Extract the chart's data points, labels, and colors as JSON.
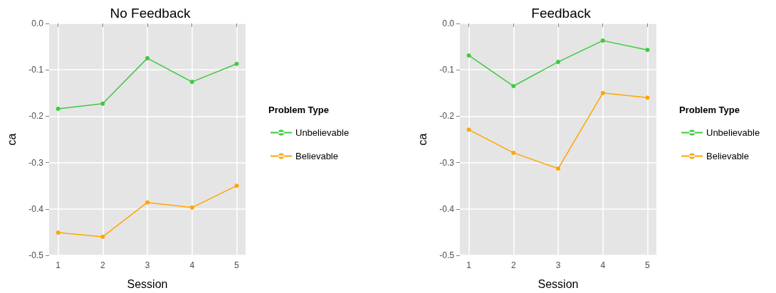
{
  "chart_data": [
    {
      "type": "line",
      "title": "No Feedback",
      "xlabel": "Session",
      "ylabel": "ca",
      "legend_title": "Problem Type",
      "legend": "right",
      "grid": true,
      "marker": "circle",
      "line_style": "solid",
      "x": [
        1,
        2,
        3,
        4,
        5
      ],
      "xlim": [
        0.8,
        5.2
      ],
      "xticks": [
        1,
        2,
        3,
        4,
        5
      ],
      "ylim": [
        -0.5,
        0
      ],
      "yticks": [
        {
          "value": -0.5,
          "label": "-0.5"
        },
        {
          "value": -0.4,
          "label": "-0.4"
        },
        {
          "value": -0.3,
          "label": "-0.3"
        },
        {
          "value": -0.2,
          "label": "-0.2"
        },
        {
          "value": -0.1,
          "label": "-0.1"
        },
        {
          "value": 0,
          "label": "0.0"
        }
      ],
      "series": [
        {
          "name": "Unbelievable",
          "color": "#3ec93e",
          "values": [
            -0.184,
            -0.173,
            -0.075,
            -0.126,
            -0.087
          ]
        },
        {
          "name": "Believable",
          "color": "#ffa500",
          "values": [
            -0.451,
            -0.46,
            -0.386,
            -0.397,
            -0.35
          ]
        }
      ]
    },
    {
      "type": "line",
      "title": "Feedback",
      "xlabel": "Session",
      "ylabel": "ca",
      "legend_title": "Problem Type",
      "legend": "right",
      "grid": true,
      "marker": "circle",
      "line_style": "solid",
      "x": [
        1,
        2,
        3,
        4,
        5
      ],
      "xlim": [
        0.8,
        5.2
      ],
      "xticks": [
        1,
        2,
        3,
        4,
        5
      ],
      "ylim": [
        -0.5,
        0
      ],
      "yticks": [
        {
          "value": -0.5,
          "label": "-0.5"
        },
        {
          "value": -0.4,
          "label": "-0.4"
        },
        {
          "value": -0.3,
          "label": "-0.3"
        },
        {
          "value": -0.2,
          "label": "-0.2"
        },
        {
          "value": -0.1,
          "label": "-0.1"
        },
        {
          "value": 0,
          "label": "0.0"
        }
      ],
      "series": [
        {
          "name": "Unbelievable",
          "color": "#3ec93e",
          "values": [
            -0.069,
            -0.135,
            -0.083,
            -0.037,
            -0.057
          ]
        },
        {
          "name": "Believable",
          "color": "#ffa500",
          "values": [
            -0.229,
            -0.279,
            -0.313,
            -0.15,
            -0.16
          ]
        }
      ]
    }
  ]
}
